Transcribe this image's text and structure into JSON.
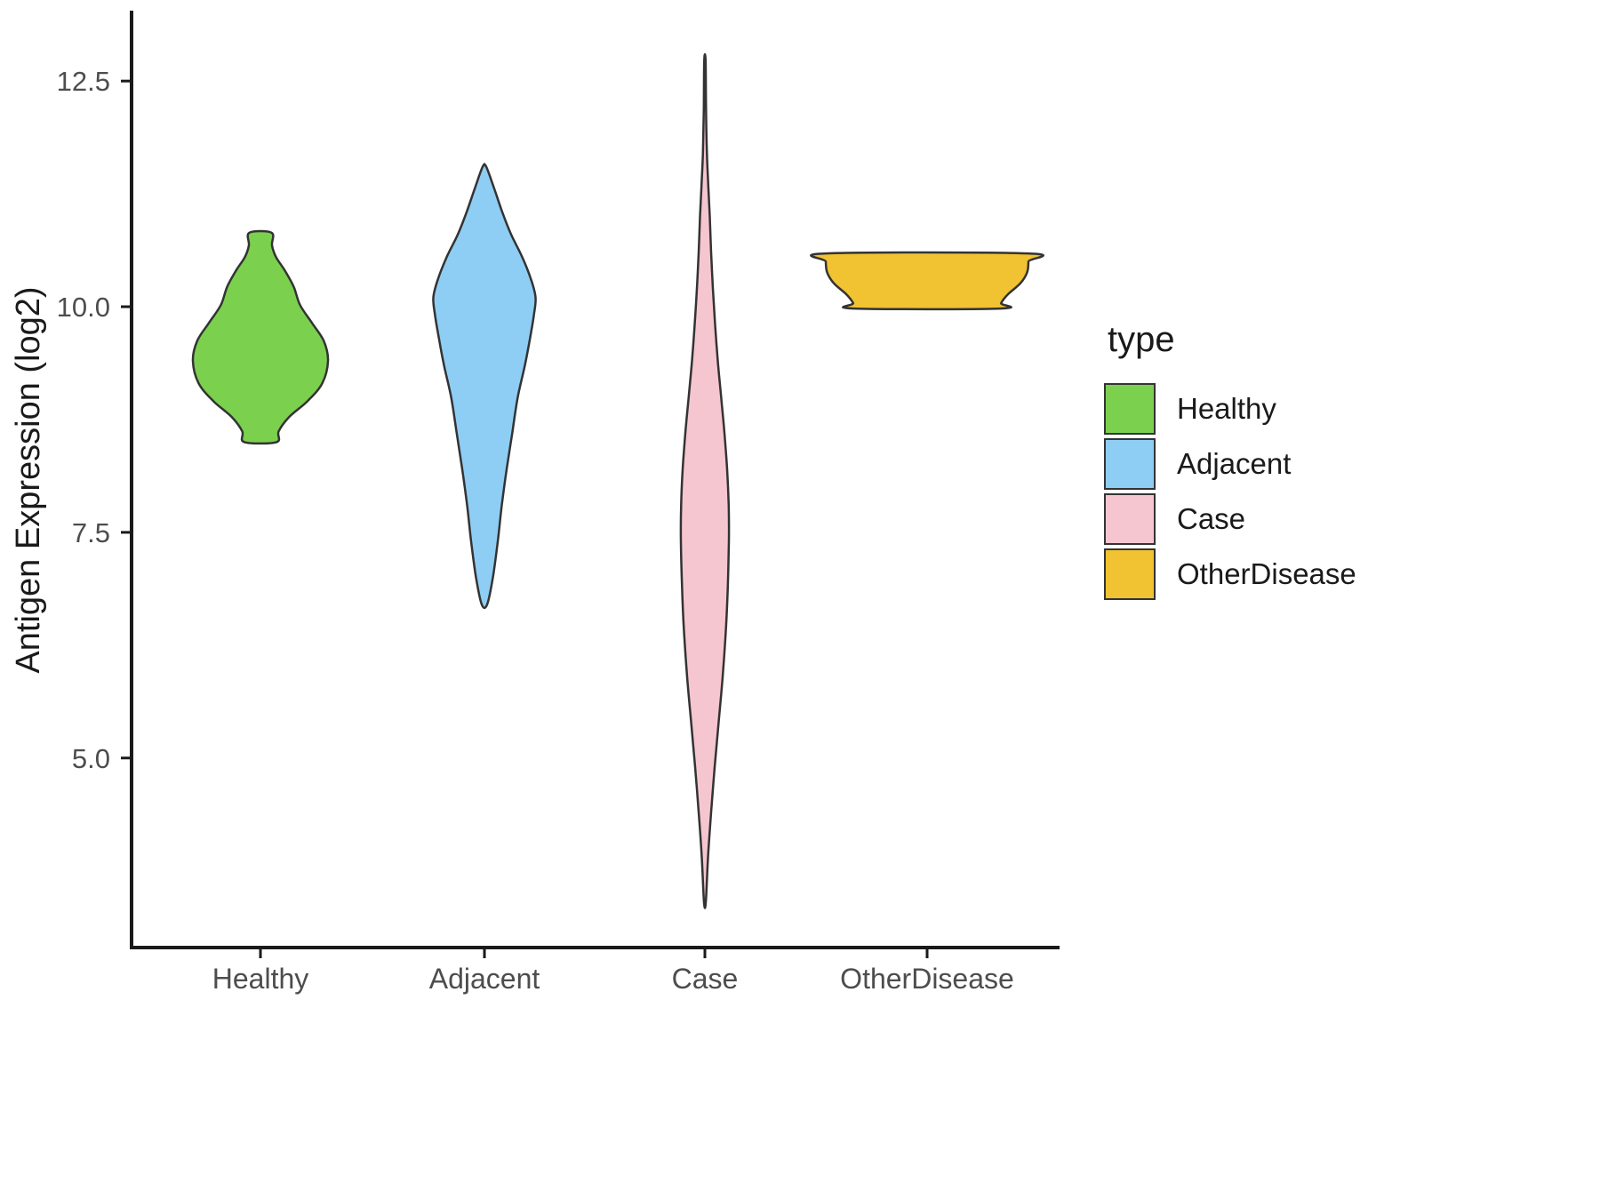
{
  "chart_data": {
    "type": "violin",
    "title": "",
    "xlabel": "",
    "ylabel": "Antigen Expression (log2)",
    "categories": [
      "Healthy",
      "Adjacent",
      "Case",
      "OtherDisease"
    ],
    "y_ticks": [
      5.0,
      7.5,
      10.0,
      12.5
    ],
    "y_tick_labels": [
      "5.0",
      "7.5",
      "10.0",
      "12.5"
    ],
    "ylim": [
      2.9,
      13.26
    ],
    "grid": false,
    "axis_color": "#1a1a1a",
    "outline_color": "#333333",
    "tick_text_color": "#4d4d4d",
    "legend": {
      "title": "type",
      "position": "right",
      "entries": [
        {
          "label": "Healthy",
          "color": "#7BD14E"
        },
        {
          "label": "Adjacent",
          "color": "#8FCEF4"
        },
        {
          "label": "Case",
          "color": "#F6C6D0"
        },
        {
          "label": "OtherDisease",
          "color": "#F1C232"
        }
      ]
    },
    "series": [
      {
        "name": "Healthy",
        "color": "#7BD14E",
        "profile": [
          [
            8.5,
            0.072
          ],
          [
            8.62,
            0.082
          ],
          [
            8.78,
            0.13
          ],
          [
            8.95,
            0.21
          ],
          [
            9.15,
            0.278
          ],
          [
            9.4,
            0.304
          ],
          [
            9.62,
            0.285
          ],
          [
            9.82,
            0.232
          ],
          [
            10.02,
            0.178
          ],
          [
            10.22,
            0.15
          ],
          [
            10.4,
            0.11
          ],
          [
            10.55,
            0.07
          ],
          [
            10.68,
            0.052
          ],
          [
            10.82,
            0.05
          ]
        ]
      },
      {
        "name": "Adjacent",
        "color": "#8FCEF4",
        "profile": [
          [
            6.7,
            0.012
          ],
          [
            7.0,
            0.038
          ],
          [
            7.4,
            0.06
          ],
          [
            7.8,
            0.078
          ],
          [
            8.2,
            0.1
          ],
          [
            8.6,
            0.125
          ],
          [
            9.0,
            0.15
          ],
          [
            9.35,
            0.182
          ],
          [
            9.65,
            0.205
          ],
          [
            9.9,
            0.222
          ],
          [
            10.1,
            0.23
          ],
          [
            10.3,
            0.21
          ],
          [
            10.55,
            0.17
          ],
          [
            10.8,
            0.12
          ],
          [
            11.05,
            0.08
          ],
          [
            11.3,
            0.045
          ],
          [
            11.55,
            0.008
          ]
        ]
      },
      {
        "name": "Case",
        "color": "#F6C6D0",
        "profile": [
          [
            3.4,
            0.004
          ],
          [
            3.9,
            0.014
          ],
          [
            4.4,
            0.028
          ],
          [
            4.9,
            0.044
          ],
          [
            5.4,
            0.062
          ],
          [
            5.9,
            0.08
          ],
          [
            6.4,
            0.094
          ],
          [
            6.9,
            0.103
          ],
          [
            7.4,
            0.108
          ],
          [
            7.8,
            0.107
          ],
          [
            8.2,
            0.1
          ],
          [
            8.6,
            0.088
          ],
          [
            9.0,
            0.073
          ],
          [
            9.4,
            0.058
          ],
          [
            9.8,
            0.046
          ],
          [
            10.2,
            0.036
          ],
          [
            10.6,
            0.028
          ],
          [
            11.0,
            0.022
          ],
          [
            11.3,
            0.016
          ],
          [
            11.7,
            0.009
          ],
          [
            12.2,
            0.005
          ],
          [
            12.73,
            0.003
          ]
        ]
      },
      {
        "name": "OtherDisease",
        "color": "#F1C232",
        "profile": [
          [
            9.98,
            0.33
          ],
          [
            10.04,
            0.333
          ],
          [
            10.14,
            0.365
          ],
          [
            10.26,
            0.42
          ],
          [
            10.38,
            0.45
          ],
          [
            10.5,
            0.456
          ],
          [
            10.59,
            0.455
          ]
        ]
      }
    ]
  }
}
